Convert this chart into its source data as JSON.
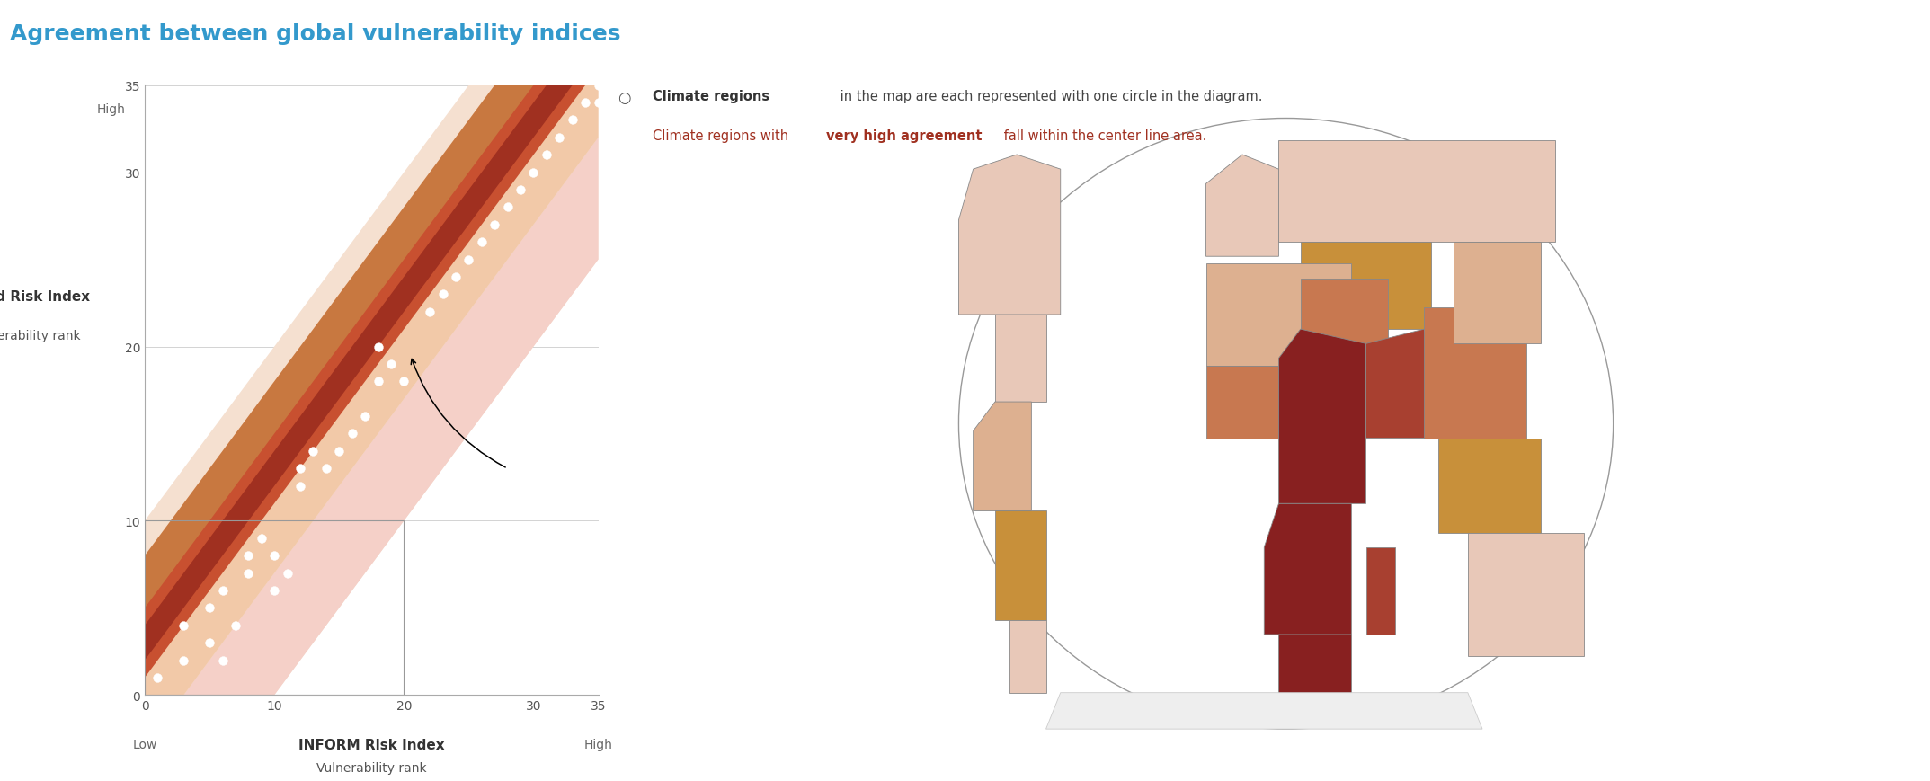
{
  "title": "Agreement between global vulnerability indices",
  "title_color": "#3399CC",
  "scatter_points": [
    [
      1,
      1
    ],
    [
      3,
      2
    ],
    [
      3,
      4
    ],
    [
      5,
      3
    ],
    [
      5,
      5
    ],
    [
      6,
      2
    ],
    [
      6,
      6
    ],
    [
      7,
      4
    ],
    [
      8,
      7
    ],
    [
      8,
      8
    ],
    [
      9,
      9
    ],
    [
      10,
      8
    ],
    [
      10,
      6
    ],
    [
      11,
      7
    ],
    [
      12,
      12
    ],
    [
      12,
      13
    ],
    [
      13,
      14
    ],
    [
      14,
      13
    ],
    [
      15,
      14
    ],
    [
      16,
      15
    ],
    [
      17,
      16
    ],
    [
      18,
      18
    ],
    [
      18,
      20
    ],
    [
      19,
      19
    ],
    [
      20,
      18
    ],
    [
      22,
      22
    ],
    [
      23,
      23
    ],
    [
      24,
      24
    ],
    [
      25,
      25
    ],
    [
      26,
      26
    ],
    [
      27,
      27
    ],
    [
      28,
      28
    ],
    [
      29,
      29
    ],
    [
      30,
      30
    ],
    [
      31,
      31
    ],
    [
      32,
      32
    ],
    [
      33,
      33
    ],
    [
      34,
      34
    ],
    [
      35,
      35
    ],
    [
      35,
      34
    ]
  ],
  "xlabel": "INFORM Risk Index",
  "xlabel_sub": "Vulnerability rank",
  "ylabel1": "World Risk Index",
  "ylabel2": "Vulnerability rank",
  "low_x": "Low",
  "high_x": "High",
  "high_y": "High",
  "legend_circle_text": "Climate regions in the map are each represented with one circle in the diagram.",
  "legend_red_prefix": "Climate regions with ",
  "legend_red_bold": "very high agreement",
  "legend_red_suffix": " fall within the center line area.",
  "c_light_peach": "#F2C9A8",
  "c_peach": "#DDAA88",
  "c_orange_brown": "#C87840",
  "c_medium_red": "#C85030",
  "c_dark_red": "#A03020",
  "c_very_dark_red": "#782010",
  "c_pink": "#F0A898",
  "c_light_pink": "#F5D0C8",
  "c_very_light": "#F5E0D0",
  "c_map_very_light": "#E8C8B8",
  "c_map_light": "#DDB090",
  "c_map_medium": "#C87850",
  "c_map_dark": "#A84030",
  "c_map_very_dark": "#882020",
  "c_map_orange": "#C8903A"
}
